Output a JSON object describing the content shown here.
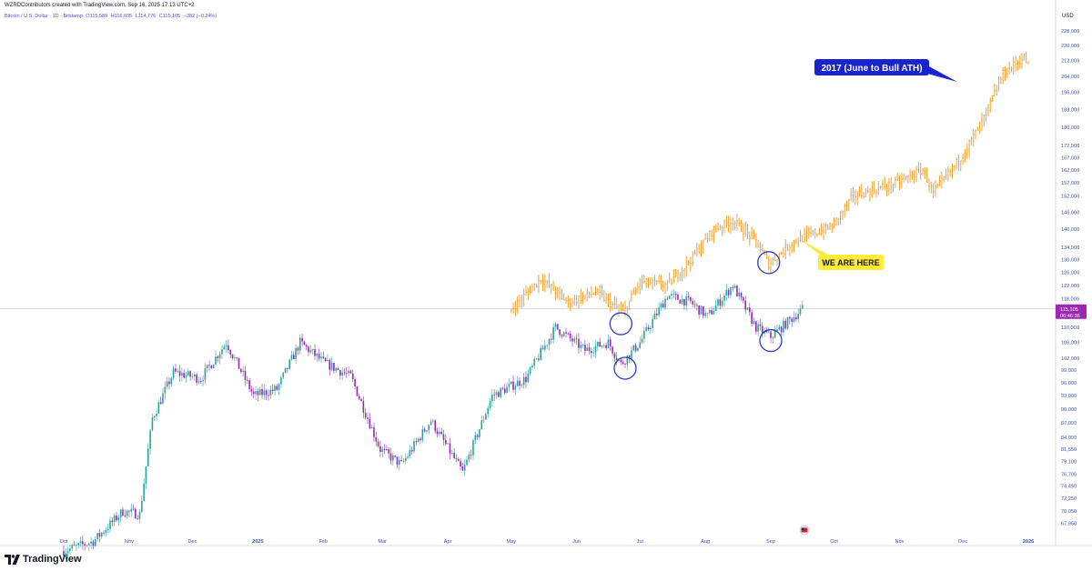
{
  "header": {
    "caption": "WZRDContributors created with TradingView.com, Sep 16, 2025 17:13 UTC+2",
    "symbol": "Bitcoin / U.S. Dollar · 1D · Bitstamp",
    "open": "O115,589",
    "high": "H116,035",
    "low": "L114,776",
    "close": "C115,105",
    "change": "−282 (−0.24%)"
  },
  "brand": {
    "name": "TradingView"
  },
  "colors": {
    "up": "#26a69a",
    "down": "#9c27b0",
    "overlay": "#f0a030",
    "circle": "#2b3fc7",
    "callout_blue": "#1a23d0",
    "callout_yellow": "#ffeb3b",
    "axis_text": "#3f51b5",
    "price_tag": "#9c27b0"
  },
  "chart_data": {
    "type": "candlestick",
    "currency": "USD",
    "price_scale": "log",
    "y_ticks": [
      "228,000",
      "220,000",
      "212,000",
      "204,000",
      "196,000",
      "188,000",
      "180,000",
      "172,000",
      "167,000",
      "162,000",
      "157,000",
      "152,000",
      "146,000",
      "140,000",
      "134,000",
      "130,000",
      "126,000",
      "122,000",
      "118,000",
      "114,000",
      "110,000",
      "106,000",
      "102,000",
      "99,000",
      "96,000",
      "93,000",
      "90,000",
      "87,000",
      "84,000",
      "81,550",
      "79,100",
      "76,700",
      "74,450",
      "72,250",
      "70,050",
      "67,950"
    ],
    "x_ticks": [
      "Oct",
      "Nov",
      "Dec",
      "2025",
      "Feb",
      "Mar",
      "Apr",
      "May",
      "Jun",
      "Jul",
      "Aug",
      "Sep",
      "Oct",
      "Nov",
      "Dec",
      "2026"
    ],
    "last_price": "115,105",
    "countdown": "06:46:36",
    "series": [
      {
        "name": "Bitcoin / U.S. Dollar",
        "kind": "candles",
        "points": [
          {
            "date": "2024-10-01",
            "value": 63500
          },
          {
            "date": "2024-10-15",
            "value": 65000
          },
          {
            "date": "2024-10-29",
            "value": 70000
          },
          {
            "date": "2024-11-06",
            "value": 69500
          },
          {
            "date": "2024-11-12",
            "value": 88000
          },
          {
            "date": "2024-11-22",
            "value": 98500
          },
          {
            "date": "2024-12-05",
            "value": 97000
          },
          {
            "date": "2024-12-17",
            "value": 106000
          },
          {
            "date": "2024-12-30",
            "value": 93000
          },
          {
            "date": "2025-01-10",
            "value": 94500
          },
          {
            "date": "2025-01-21",
            "value": 106000
          },
          {
            "date": "2025-02-01",
            "value": 101000
          },
          {
            "date": "2025-02-14",
            "value": 97500
          },
          {
            "date": "2025-02-28",
            "value": 81500
          },
          {
            "date": "2025-03-10",
            "value": 78500
          },
          {
            "date": "2025-03-24",
            "value": 87500
          },
          {
            "date": "2025-04-08",
            "value": 77000
          },
          {
            "date": "2025-04-22",
            "value": 93000
          },
          {
            "date": "2025-05-08",
            "value": 97000
          },
          {
            "date": "2025-05-22",
            "value": 110000
          },
          {
            "date": "2025-06-05",
            "value": 104000
          },
          {
            "date": "2025-06-16",
            "value": 106000
          },
          {
            "date": "2025-06-22",
            "value": 100500
          },
          {
            "date": "2025-07-01",
            "value": 106000
          },
          {
            "date": "2025-07-14",
            "value": 119000
          },
          {
            "date": "2025-07-25",
            "value": 117000
          },
          {
            "date": "2025-08-02",
            "value": 113000
          },
          {
            "date": "2025-08-14",
            "value": 122000
          },
          {
            "date": "2025-08-25",
            "value": 110000
          },
          {
            "date": "2025-09-01",
            "value": 107500
          },
          {
            "date": "2025-09-10",
            "value": 112000
          },
          {
            "date": "2025-09-16",
            "value": 115105
          }
        ]
      },
      {
        "name": "2017 (June to Bull ATH)",
        "kind": "overlay-bars",
        "points": [
          {
            "date": "2025-05-01",
            "value": 115000
          },
          {
            "date": "2025-05-15",
            "value": 124000
          },
          {
            "date": "2025-05-28",
            "value": 117000
          },
          {
            "date": "2025-06-10",
            "value": 120000
          },
          {
            "date": "2025-06-23",
            "value": 114000
          },
          {
            "date": "2025-07-01",
            "value": 123000
          },
          {
            "date": "2025-07-14",
            "value": 122000
          },
          {
            "date": "2025-07-25",
            "value": 130000
          },
          {
            "date": "2025-08-05",
            "value": 140000
          },
          {
            "date": "2025-08-14",
            "value": 143000
          },
          {
            "date": "2025-08-25",
            "value": 136000
          },
          {
            "date": "2025-08-31",
            "value": 128500
          },
          {
            "date": "2025-09-12",
            "value": 136000
          },
          {
            "date": "2025-09-30",
            "value": 141000
          },
          {
            "date": "2025-10-10",
            "value": 152000
          },
          {
            "date": "2025-10-31",
            "value": 157000
          },
          {
            "date": "2025-11-12",
            "value": 162000
          },
          {
            "date": "2025-11-17",
            "value": 153000
          },
          {
            "date": "2025-11-30",
            "value": 167000
          },
          {
            "date": "2025-12-10",
            "value": 182000
          },
          {
            "date": "2025-12-20",
            "value": 205000
          },
          {
            "date": "2025-12-30",
            "value": 214000
          },
          {
            "date": "2026-01-01",
            "value": 209000
          }
        ]
      }
    ],
    "annotations": [
      {
        "text": "2017 (June to Bull ATH)",
        "style": "blue-callout"
      },
      {
        "text": "WE ARE HERE",
        "style": "yellow-callout"
      }
    ],
    "highlight_circles": [
      {
        "date": "2025-06-22",
        "value": 111000
      },
      {
        "date": "2025-06-24",
        "value": 99500
      },
      {
        "date": "2025-08-31",
        "value": 129000
      },
      {
        "date": "2025-09-01",
        "value": 106500
      }
    ]
  }
}
